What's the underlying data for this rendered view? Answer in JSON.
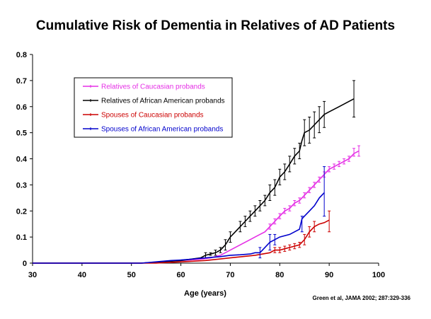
{
  "chart_data": {
    "type": "line",
    "title": "Cumulative Risk of Dementia in Relatives of AD Patients",
    "xlabel": "Age (years)",
    "ylabel": "",
    "xlim": [
      30,
      100
    ],
    "ylim": [
      0,
      0.8
    ],
    "x_ticks": [
      "30",
      "40",
      "50",
      "60",
      "70",
      "80",
      "90",
      "100"
    ],
    "y_ticks": [
      "0",
      "0.1",
      "0.2",
      "0.3",
      "0.4",
      "0.5",
      "0.6",
      "0.7",
      "0.8"
    ],
    "grid": false,
    "legend_position": "top-left",
    "source": "Green et al, JAMA 2002; 287:329-336",
    "series": [
      {
        "name": "Relatives of Caucasian probands",
        "color": "#e52fe5",
        "x": [
          30,
          52,
          60,
          64,
          66,
          68,
          70,
          72,
          74,
          75,
          76,
          77,
          78,
          79,
          80,
          81,
          82,
          83,
          84,
          85,
          86,
          87,
          88,
          89,
          90,
          91,
          92,
          93,
          94,
          95,
          96
        ],
        "y": [
          0,
          0,
          0.01,
          0.015,
          0.02,
          0.03,
          0.05,
          0.07,
          0.09,
          0.1,
          0.11,
          0.12,
          0.14,
          0.16,
          0.18,
          0.2,
          0.21,
          0.23,
          0.24,
          0.26,
          0.28,
          0.3,
          0.32,
          0.34,
          0.36,
          0.37,
          0.38,
          0.39,
          0.4,
          0.42,
          0.43
        ],
        "error_x": [
          78,
          79,
          80,
          81,
          82,
          83,
          84,
          85,
          86,
          87,
          88,
          89,
          90,
          91,
          92,
          93,
          94,
          95,
          96
        ],
        "error_low": [
          0.13,
          0.15,
          0.17,
          0.19,
          0.2,
          0.22,
          0.23,
          0.25,
          0.27,
          0.29,
          0.31,
          0.33,
          0.35,
          0.36,
          0.37,
          0.38,
          0.39,
          0.41,
          0.41
        ],
        "error_high": [
          0.15,
          0.17,
          0.19,
          0.21,
          0.22,
          0.24,
          0.25,
          0.27,
          0.29,
          0.31,
          0.33,
          0.35,
          0.37,
          0.38,
          0.39,
          0.4,
          0.41,
          0.44,
          0.45
        ]
      },
      {
        "name": "Relatives of African American probands",
        "color": "#000000",
        "x": [
          30,
          52,
          60,
          64,
          65,
          66,
          67,
          68,
          69,
          70,
          71,
          72,
          73,
          74,
          75,
          76,
          77,
          78,
          79,
          80,
          81,
          82,
          83,
          84,
          84.5,
          85,
          86,
          87,
          88,
          89,
          90,
          92,
          95
        ],
        "y": [
          0,
          0,
          0.01,
          0.02,
          0.03,
          0.035,
          0.04,
          0.05,
          0.07,
          0.1,
          0.12,
          0.14,
          0.16,
          0.18,
          0.2,
          0.22,
          0.24,
          0.27,
          0.29,
          0.33,
          0.35,
          0.38,
          0.41,
          0.43,
          0.47,
          0.5,
          0.51,
          0.53,
          0.55,
          0.57,
          0.58,
          0.6,
          0.63
        ],
        "error_x": [
          65,
          66,
          67,
          68,
          69,
          70,
          72,
          73,
          74,
          75,
          76,
          77,
          78,
          79,
          80,
          81,
          82,
          83,
          84,
          85,
          86,
          87,
          88,
          89,
          95
        ],
        "error_low": [
          0.02,
          0.03,
          0.03,
          0.04,
          0.05,
          0.08,
          0.12,
          0.14,
          0.16,
          0.18,
          0.2,
          0.22,
          0.24,
          0.26,
          0.3,
          0.32,
          0.35,
          0.38,
          0.4,
          0.45,
          0.46,
          0.48,
          0.5,
          0.52,
          0.56
        ],
        "error_high": [
          0.04,
          0.04,
          0.05,
          0.06,
          0.09,
          0.12,
          0.16,
          0.18,
          0.2,
          0.22,
          0.24,
          0.26,
          0.3,
          0.32,
          0.36,
          0.38,
          0.41,
          0.44,
          0.46,
          0.55,
          0.56,
          0.58,
          0.6,
          0.62,
          0.7
        ]
      },
      {
        "name": "Spouses of Caucasian probands",
        "color": "#cc0000",
        "x": [
          30,
          55,
          60,
          65,
          70,
          75,
          78,
          79,
          80,
          81,
          82,
          83,
          84,
          85,
          86,
          87,
          88,
          89,
          90
        ],
        "y": [
          0,
          0,
          0.005,
          0.01,
          0.02,
          0.03,
          0.04,
          0.05,
          0.05,
          0.055,
          0.06,
          0.065,
          0.07,
          0.09,
          0.12,
          0.14,
          0.15,
          0.155,
          0.165
        ],
        "error_x": [
          79,
          80,
          81,
          82,
          83,
          84,
          85,
          86,
          87,
          90
        ],
        "error_low": [
          0.04,
          0.04,
          0.045,
          0.05,
          0.055,
          0.06,
          0.07,
          0.1,
          0.12,
          0.12
        ],
        "error_high": [
          0.06,
          0.06,
          0.065,
          0.07,
          0.075,
          0.08,
          0.11,
          0.14,
          0.16,
          0.2
        ]
      },
      {
        "name": "Spouses of African American probands",
        "color": "#0000cc",
        "x": [
          30,
          52,
          55,
          58,
          60,
          62,
          65,
          68,
          70,
          72,
          74,
          75,
          76,
          77,
          78,
          79,
          80,
          82,
          84,
          84.5,
          85,
          86,
          87,
          88,
          89
        ],
        "y": [
          0,
          0,
          0.005,
          0.01,
          0.012,
          0.015,
          0.02,
          0.025,
          0.03,
          0.032,
          0.035,
          0.04,
          0.04,
          0.06,
          0.08,
          0.09,
          0.1,
          0.11,
          0.13,
          0.17,
          0.18,
          0.2,
          0.22,
          0.25,
          0.27
        ],
        "error_x": [
          76,
          78,
          79,
          84.5,
          89
        ],
        "error_low": [
          0.02,
          0.05,
          0.07,
          0.12,
          0.18
        ],
        "error_high": [
          0.06,
          0.11,
          0.11,
          0.18,
          0.37
        ]
      }
    ]
  }
}
